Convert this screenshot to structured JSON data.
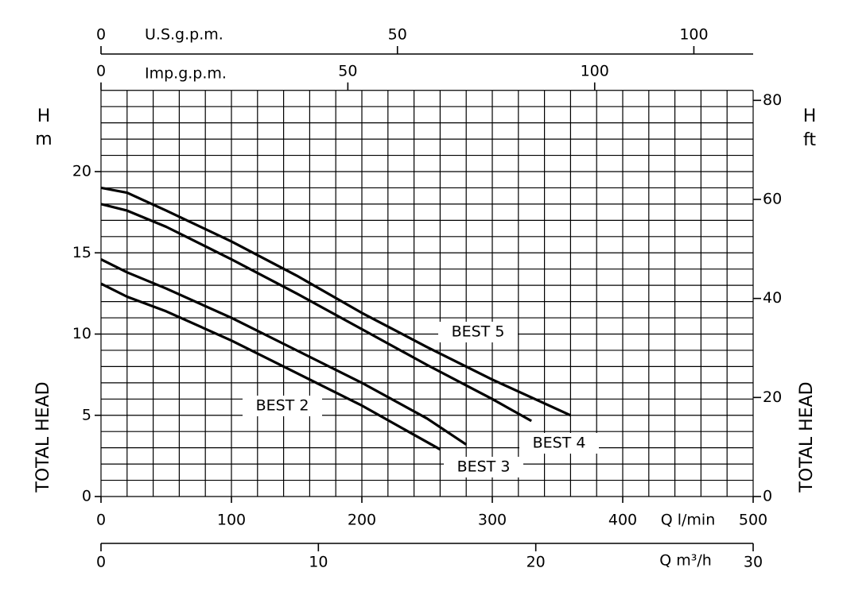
{
  "chart_data": {
    "type": "line",
    "y_label": "H",
    "y_unit": "m",
    "y_title": "TOTAL HEAD",
    "y2_label": "H",
    "y2_unit": "ft",
    "y2_title": "TOTAL HEAD",
    "x_label": "Q l/min",
    "xlim": [
      0,
      500
    ],
    "xticks": [
      0,
      100,
      200,
      300,
      400,
      500
    ],
    "ylim": [
      0,
      25
    ],
    "yticks": [
      0,
      5,
      10,
      15,
      20
    ],
    "y2lim": [
      0,
      82.02
    ],
    "y2ticks": [
      0,
      20,
      40,
      60,
      80
    ],
    "x_grid_step": 20,
    "y_grid_step": 1,
    "grid": true,
    "color": "#000000",
    "top_axes": [
      {
        "label": "U.S.g.p.m.",
        "xlim": [
          0,
          110
        ],
        "xticks": [
          0,
          50,
          100
        ]
      },
      {
        "label": "Imp.g.p.m.",
        "xlim": [
          0,
          132.1
        ],
        "xticks": [
          0,
          50,
          100
        ]
      }
    ],
    "bottom_axis": {
      "label": "Q m³/h",
      "xlim": [
        0,
        30
      ],
      "xticks": [
        0,
        10,
        20,
        30
      ]
    },
    "series": [
      {
        "name": "BEST 2",
        "x": [
          0,
          20,
          50,
          100,
          150,
          200,
          260
        ],
        "values": [
          13.1,
          12.3,
          11.4,
          9.6,
          7.6,
          5.6,
          2.9
        ]
      },
      {
        "name": "BEST 3",
        "x": [
          0,
          20,
          50,
          100,
          150,
          200,
          250,
          280
        ],
        "values": [
          14.6,
          13.8,
          12.8,
          11.0,
          9.0,
          7.0,
          4.8,
          3.2
        ]
      },
      {
        "name": "BEST 4",
        "x": [
          0,
          20,
          50,
          100,
          150,
          200,
          250,
          300,
          330
        ],
        "values": [
          18.0,
          17.6,
          16.6,
          14.6,
          12.5,
          10.3,
          8.1,
          6.0,
          4.65
        ]
      },
      {
        "name": "BEST 5",
        "x": [
          0,
          20,
          50,
          100,
          150,
          200,
          250,
          300,
          360
        ],
        "values": [
          19.0,
          18.7,
          17.6,
          15.7,
          13.6,
          11.3,
          9.2,
          7.2,
          5.0
        ]
      }
    ]
  }
}
